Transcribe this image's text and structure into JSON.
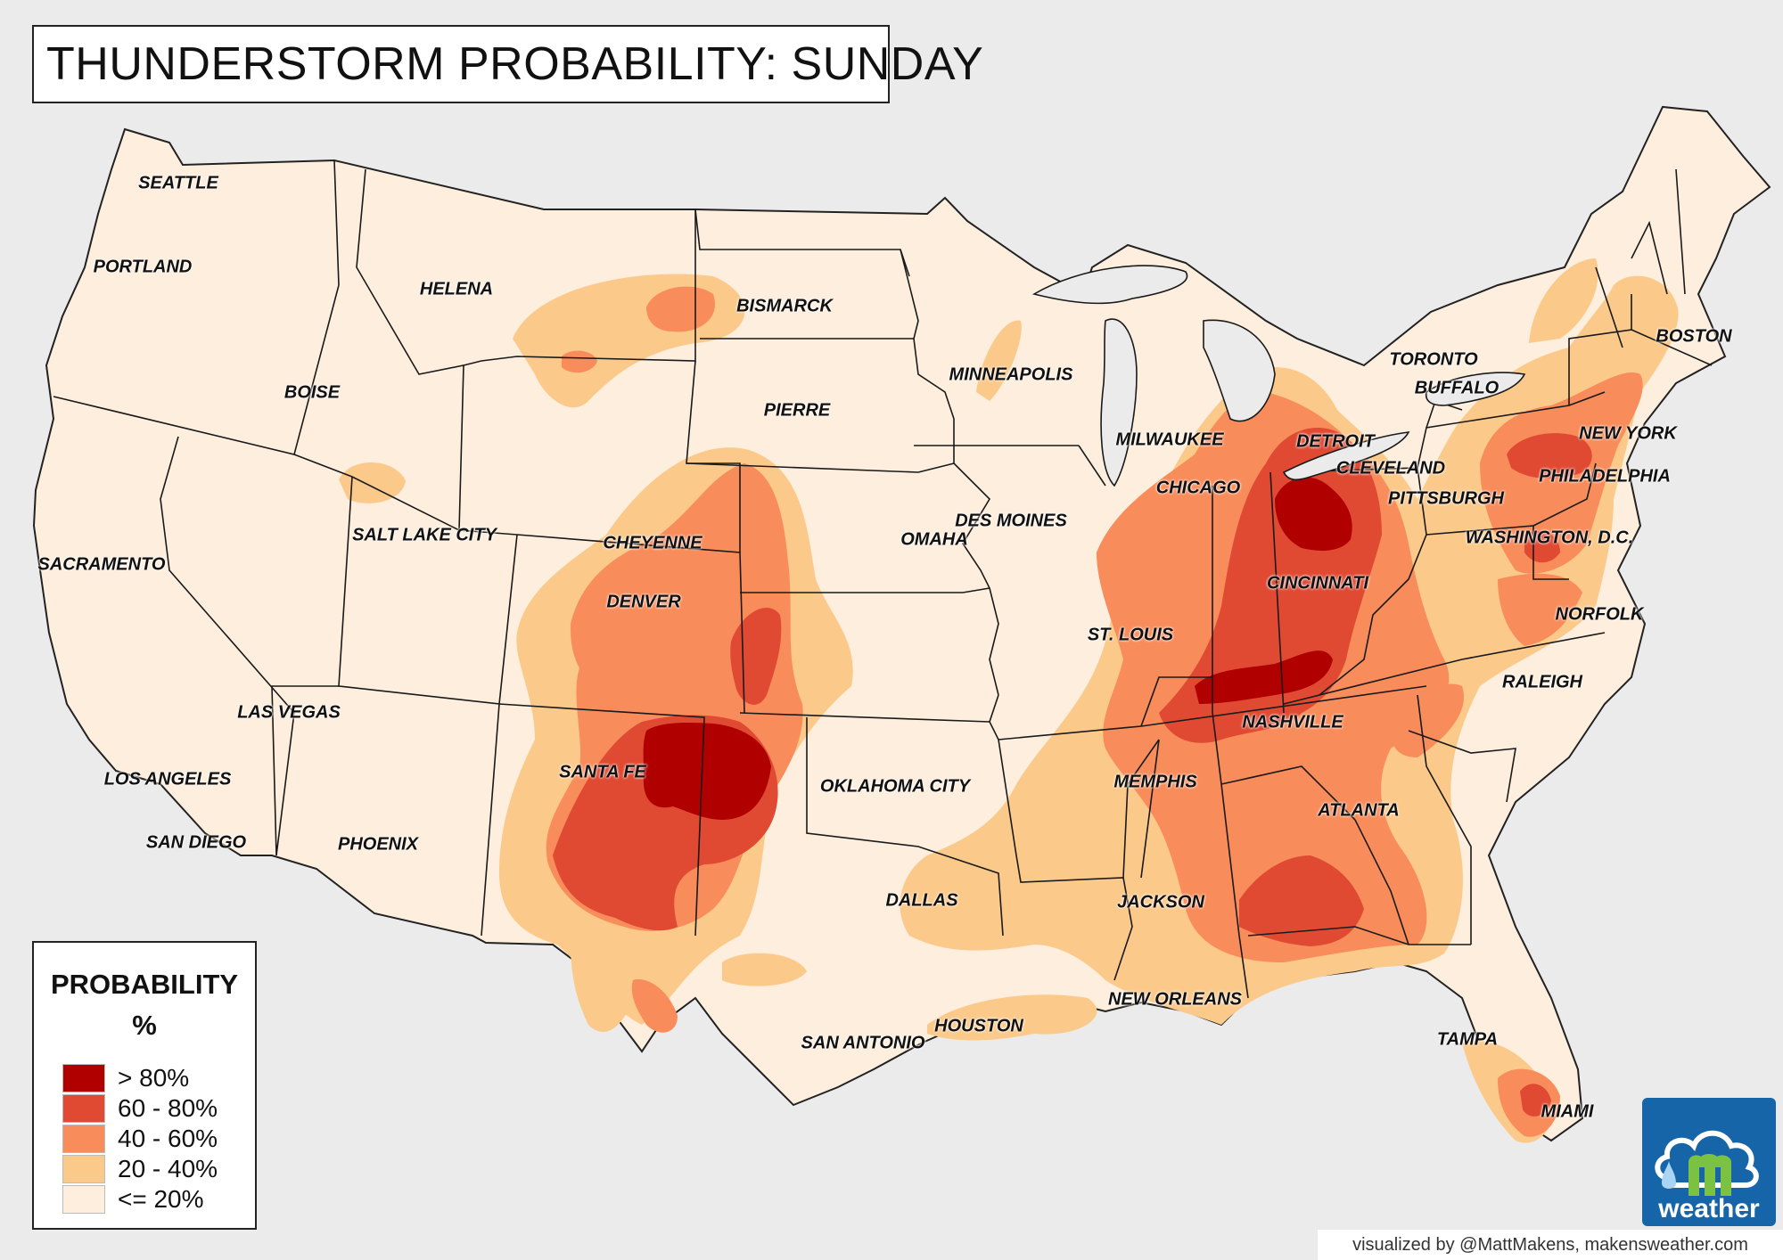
{
  "title": "THUNDERSTORM PROBABILITY: SUNDAY",
  "legend": {
    "title_line1": "PROBABILITY",
    "title_line2": "%",
    "items": [
      {
        "label": "> 80%",
        "color": "#b00000"
      },
      {
        "label": "60 - 80%",
        "color": "#e04a32"
      },
      {
        "label": "40 - 60%",
        "color": "#f88c5a"
      },
      {
        "label": "20 - 40%",
        "color": "#fbc98a"
      },
      {
        "label": "<= 20%",
        "color": "#fdeedd"
      }
    ]
  },
  "cities": {
    "seattle": "SEATTLE",
    "portland": "PORTLAND",
    "helena": "HELENA",
    "bismarck": "BISMARCK",
    "boise": "BOISE",
    "minneapolis": "MINNEAPOLIS",
    "pierre": "PIERRE",
    "toronto": "TORONTO",
    "buffalo": "BUFFALO",
    "boston": "BOSTON",
    "milwaukee": "MILWAUKEE",
    "detroit": "DETROIT",
    "new_york": "NEW YORK",
    "cleveland": "CLEVELAND",
    "philadelphia": "PHILADELPHIA",
    "chicago": "CHICAGO",
    "pittsburgh": "PITTSBURGH",
    "salt_lake_city": "SALT LAKE CITY",
    "des_moines": "DES MOINES",
    "washington_dc": "WASHINGTON, D.C.",
    "cheyenne": "CHEYENNE",
    "omaha": "OMAHA",
    "sacramento": "SACRAMENTO",
    "cincinnati": "CINCINNATI",
    "denver": "DENVER",
    "norfolk": "NORFOLK",
    "st_louis": "ST. LOUIS",
    "raleigh": "RALEIGH",
    "las_vegas": "LAS VEGAS",
    "nashville": "NASHVILLE",
    "santa_fe": "SANTA FE",
    "memphis": "MEMPHIS",
    "los_angeles": "LOS ANGELES",
    "oklahoma_city": "OKLAHOMA CITY",
    "atlanta": "ATLANTA",
    "san_diego": "SAN DIEGO",
    "phoenix": "PHOENIX",
    "dallas": "DALLAS",
    "jackson": "JACKSON",
    "new_orleans": "NEW ORLEANS",
    "houston": "HOUSTON",
    "san_antonio": "SAN ANTONIO",
    "tampa": "TAMPA",
    "miami": "MIAMI"
  },
  "logo": {
    "word": "weather",
    "icon": "makens-weather-logo-icon"
  },
  "credit": "visualized by @MattMakens, makensweather.com"
}
